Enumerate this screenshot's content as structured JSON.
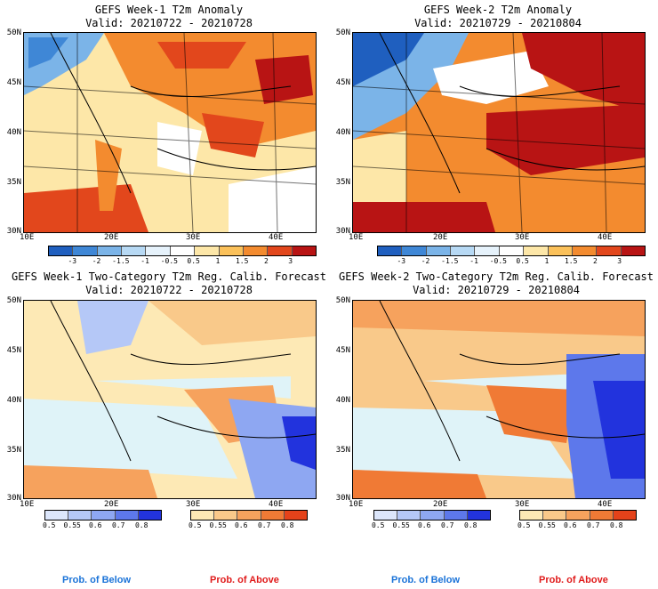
{
  "panels": [
    {
      "title": "GEFS Week-1 T2m Anomaly",
      "valid": "Valid: 20210722 - 20210728"
    },
    {
      "title": "GEFS Week-2 T2m Anomaly",
      "valid": "Valid: 20210729 - 20210804"
    },
    {
      "title": "GEFS Week-1 Two-Category T2m Reg. Calib. Forecast",
      "valid": "Valid: 20210722 - 20210728"
    },
    {
      "title": "GEFS Week-2 Two-Category T2m Reg. Calib. Forecast",
      "valid": "Valid: 20210729 - 20210804"
    }
  ],
  "lat_labels": [
    "50N",
    "45N",
    "40N",
    "35N",
    "30N"
  ],
  "lon_labels": [
    "10E",
    "20E",
    "30E",
    "40E"
  ],
  "anomaly_ticks": [
    "-3",
    "-2",
    "-1.5",
    "-1",
    "-0.5",
    "0.5",
    "1",
    "1.5",
    "2",
    "3"
  ],
  "anomaly_colors": [
    "#1f5fbf",
    "#3f87d6",
    "#7bb4e8",
    "#b7d9f4",
    "#e6f2fb",
    "#ffffff",
    "#fde7a8",
    "#fbc15a",
    "#f38b2f",
    "#e2471c",
    "#b81414"
  ],
  "prob_ticks": [
    "0.5",
    "0.55",
    "0.6",
    "0.7",
    "0.8"
  ],
  "below_colors": [
    "#dce6fb",
    "#b5c8f7",
    "#8ea7f2",
    "#5d78eb",
    "#2233dd"
  ],
  "above_colors": [
    "#fde9b5",
    "#f9c98a",
    "#f6a25d",
    "#f07a35",
    "#e5421a"
  ],
  "prob_below_label": "Prob. of Below",
  "prob_above_label": "Prob. of Above",
  "below_label_color": "#1a73d8",
  "above_label_color": "#e01a1a"
}
